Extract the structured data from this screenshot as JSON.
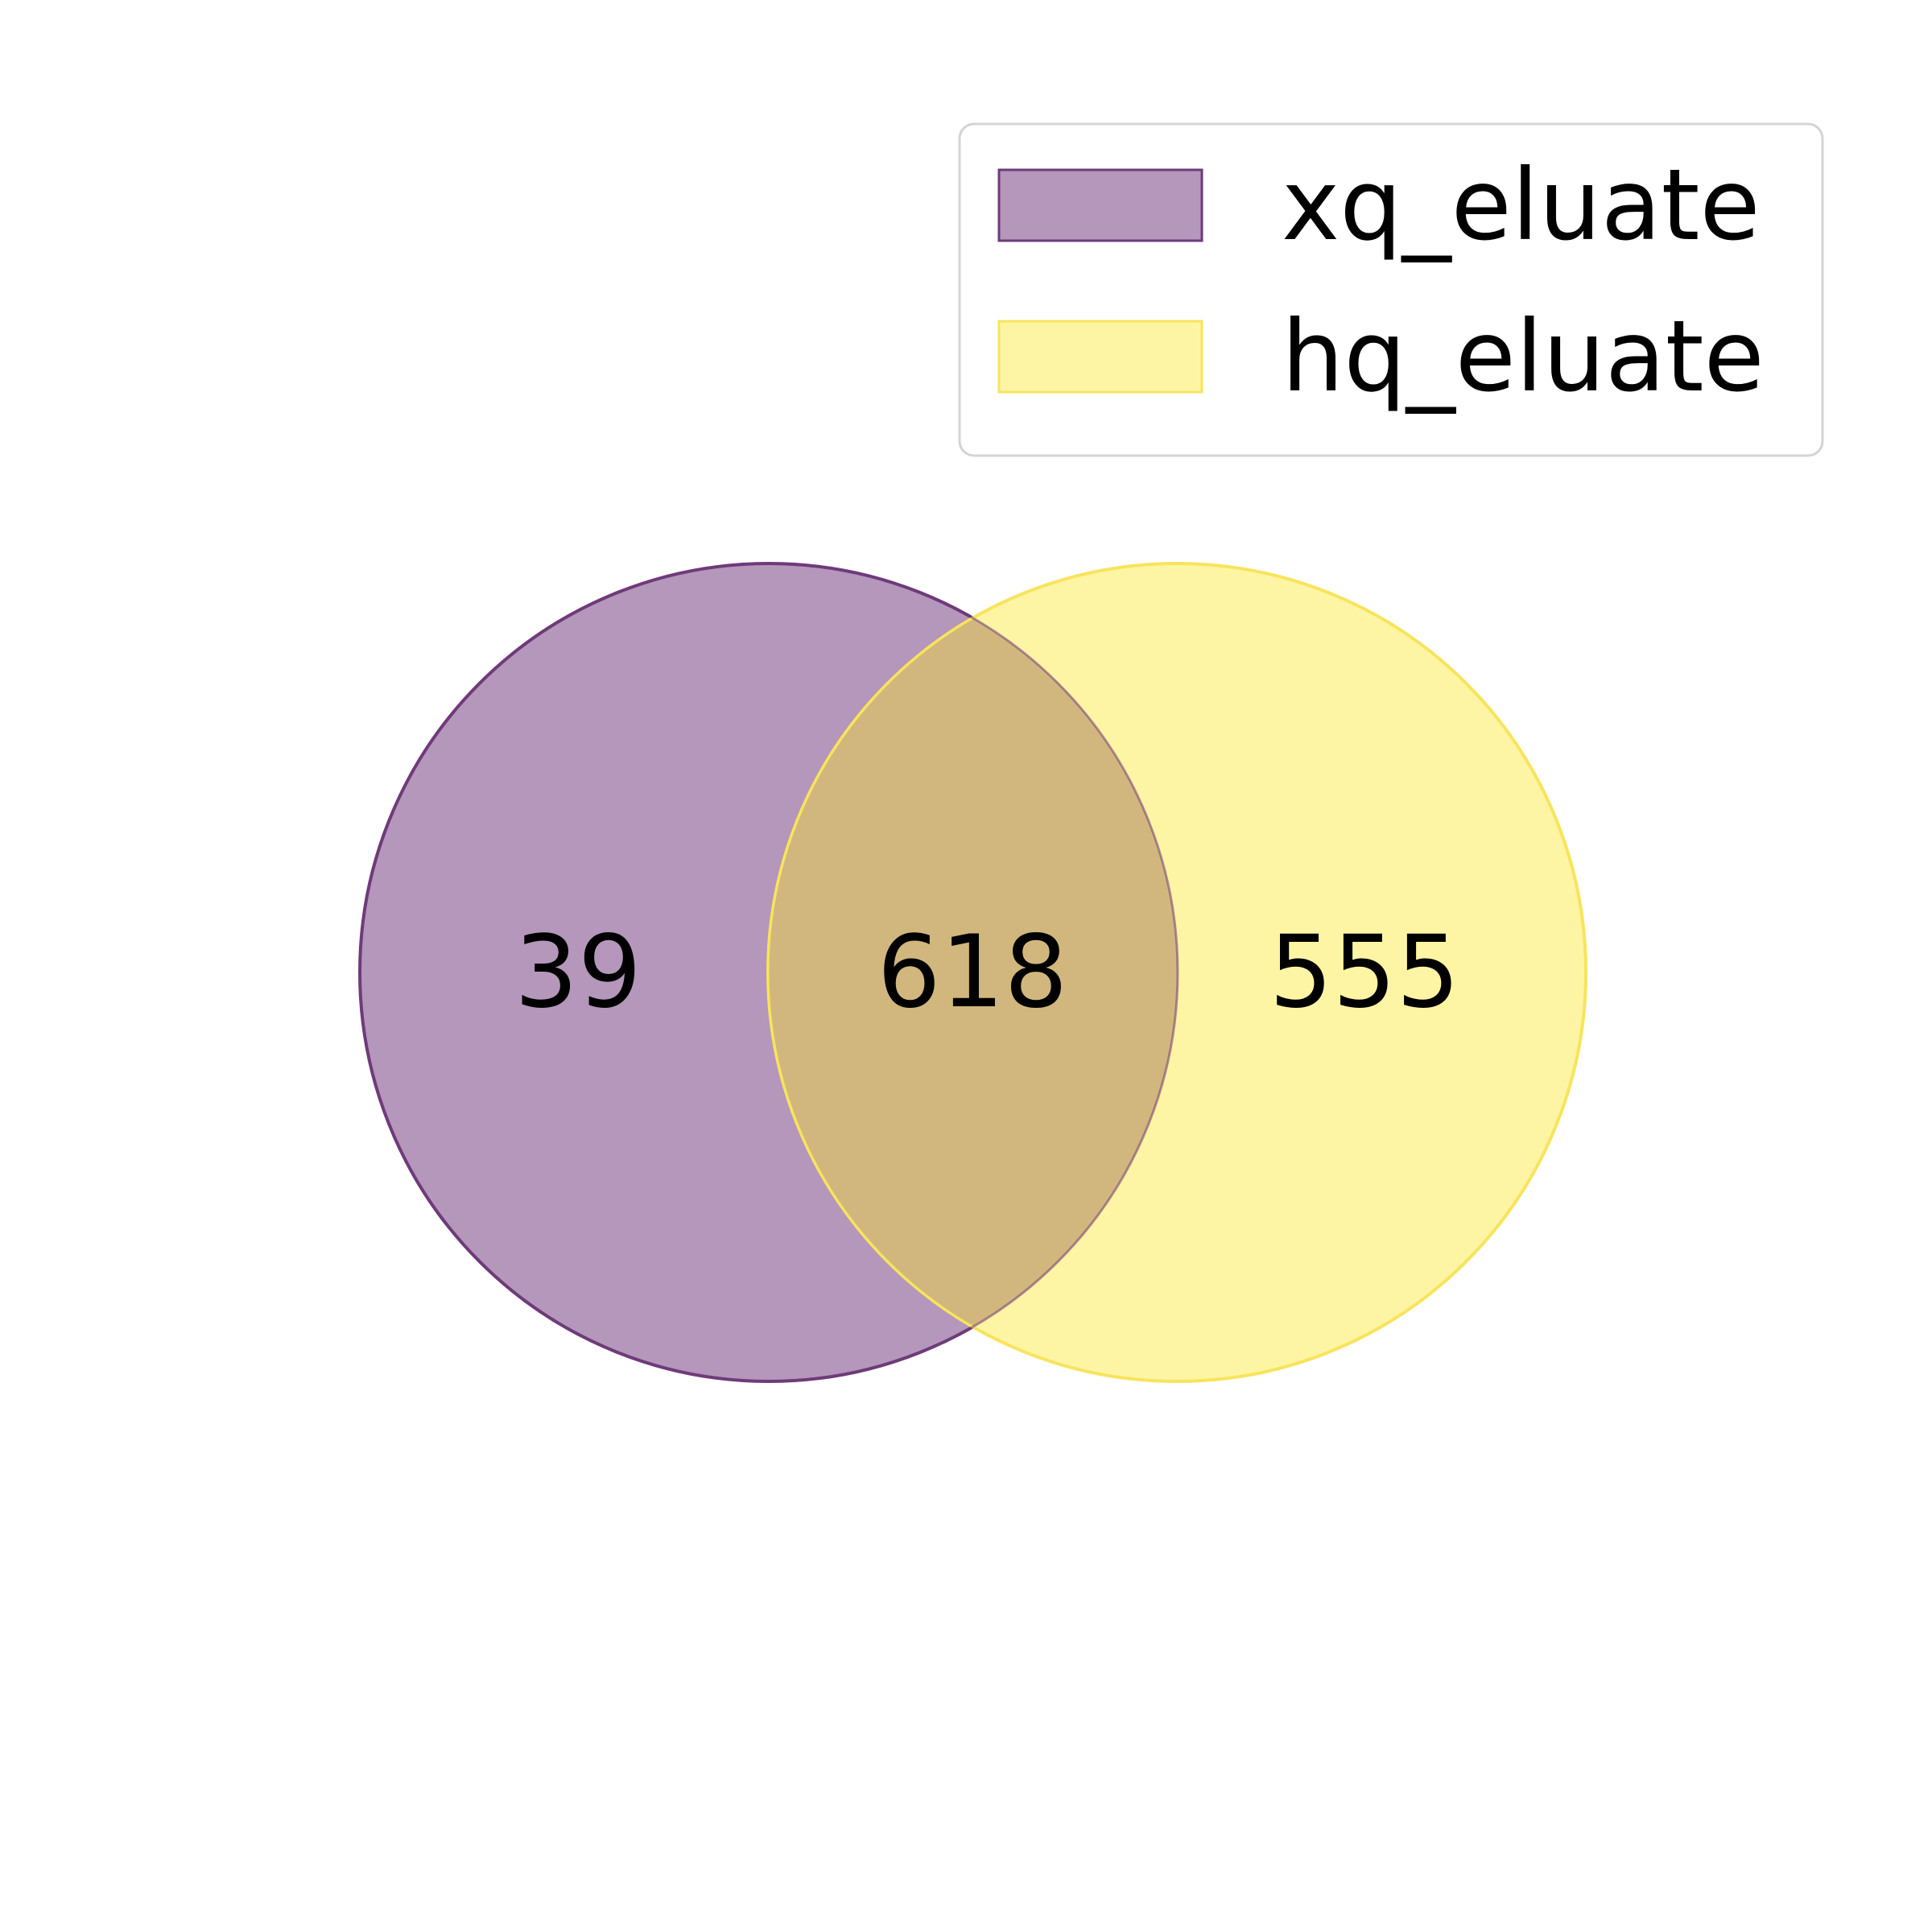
{
  "sets": [
    {
      "name": "xq_eluate",
      "color": "#b497ba",
      "edge_color": "#6f3a7a"
    },
    {
      "name": "hq_eluate",
      "color": "#fef5a4",
      "edge_color": "#f8e45c"
    }
  ],
  "regions": {
    "only_a": "39",
    "both": "618",
    "only_b": "555"
  },
  "overlap_color": "#d1b77e",
  "legend": {
    "placement": "top-right",
    "border_color": "#d4d4d4"
  }
}
